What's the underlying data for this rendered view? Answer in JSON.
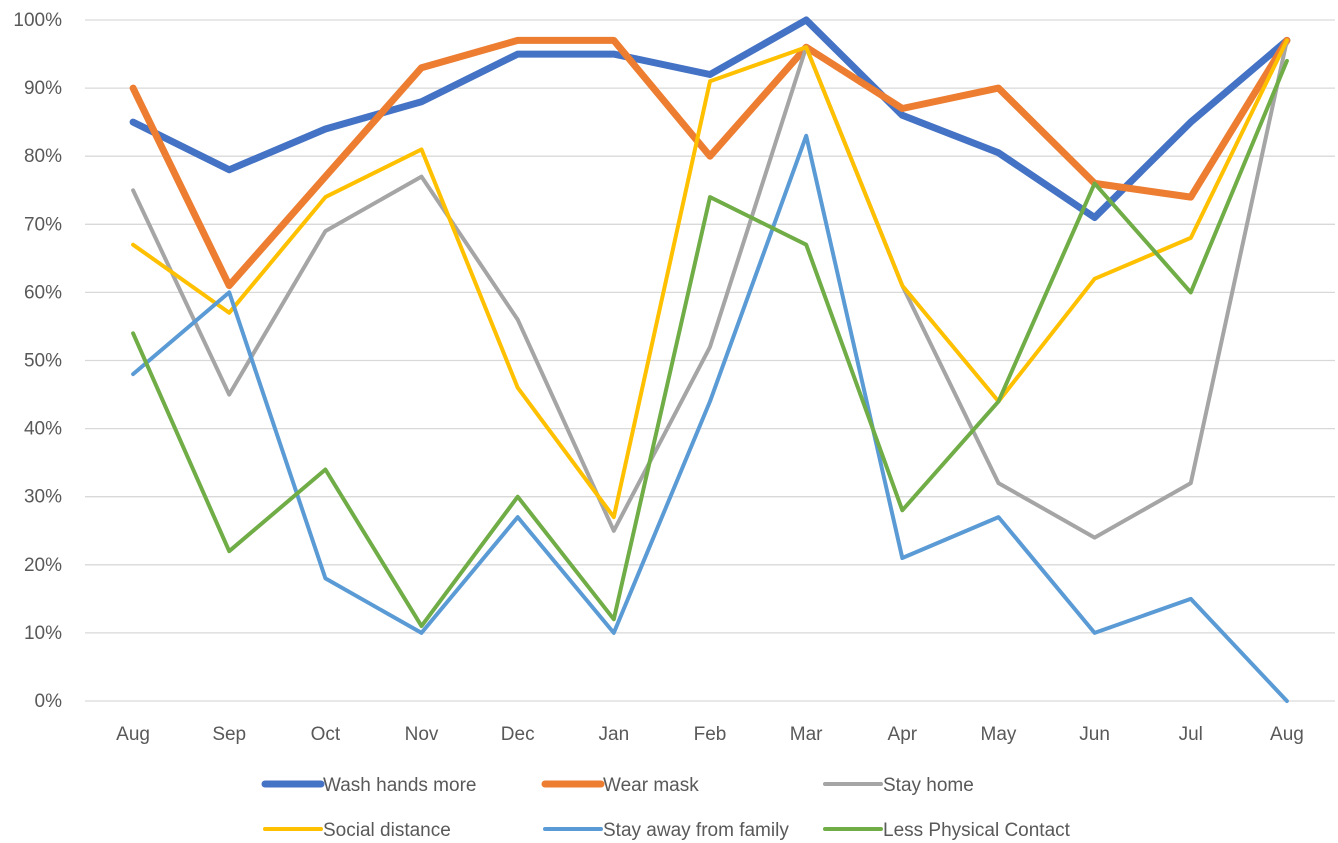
{
  "chart_data": {
    "type": "line",
    "title": "",
    "xlabel": "",
    "ylabel": "",
    "categories": [
      "Aug",
      "Sep",
      "Oct",
      "Nov",
      "Dec",
      "Jan",
      "Feb",
      "Mar",
      "Apr",
      "May",
      "Jun",
      "Jul",
      "Aug"
    ],
    "ylim": [
      0,
      100
    ],
    "y_ticks": [
      0,
      10,
      20,
      30,
      40,
      50,
      60,
      70,
      80,
      90,
      100
    ],
    "y_tick_labels": [
      "0%",
      "10%",
      "20%",
      "30%",
      "40%",
      "50%",
      "60%",
      "70%",
      "80%",
      "90%",
      "100%"
    ],
    "grid": true,
    "legend_position": "bottom",
    "series": [
      {
        "name": "Wash hands more",
        "color": "#4472c4",
        "width": "thick",
        "values": [
          85,
          78,
          84,
          88,
          95,
          95,
          92,
          100,
          86,
          80.5,
          71,
          85,
          97
        ]
      },
      {
        "name": "Wear mask",
        "color": "#ed7d31",
        "width": "thick",
        "values": [
          90,
          61,
          77,
          93,
          97,
          97,
          80,
          96,
          87,
          90,
          76,
          74,
          97
        ]
      },
      {
        "name": "Stay home",
        "color": "#a5a5a5",
        "width": "thin",
        "values": [
          75,
          45,
          69,
          77,
          56,
          25,
          52,
          96,
          61,
          32,
          24,
          32,
          97
        ]
      },
      {
        "name": "Social distance",
        "color": "#ffc000",
        "width": "thin",
        "values": [
          67,
          57,
          74,
          81,
          46,
          27,
          91,
          96,
          61,
          44,
          62,
          68,
          97
        ]
      },
      {
        "name": "Stay away from family",
        "color": "#5b9bd5",
        "width": "thin",
        "values": [
          48,
          60,
          18,
          10,
          27,
          10,
          44,
          83,
          21,
          27,
          10,
          15,
          0
        ]
      },
      {
        "name": "Less Physical Contact",
        "color": "#70ad47",
        "width": "thin",
        "values": [
          54,
          22,
          34,
          11,
          30,
          12,
          74,
          67,
          28,
          44,
          76,
          60,
          94
        ]
      }
    ]
  }
}
